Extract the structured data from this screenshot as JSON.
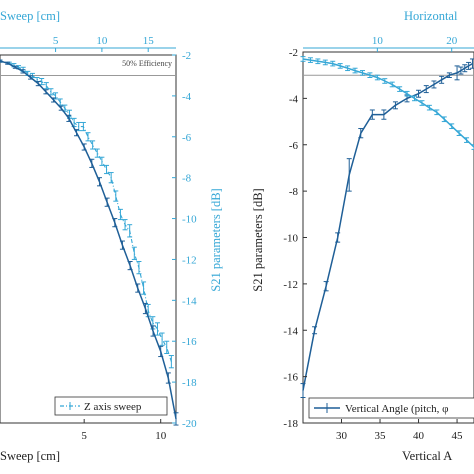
{
  "colors": {
    "dark_blue": "#1f5f97",
    "light_blue": "#35a7d6",
    "axis": "#333333",
    "ref_line": "#999999"
  },
  "chart_data": [
    {
      "type": "line",
      "panel": "left",
      "xlabel_top": "Sweep [cm]",
      "xlabel_bottom": "Sweep [cm]",
      "ylabel_right": "S21 parameters [dB]",
      "x_top_ticks": [
        "5",
        "10",
        "15"
      ],
      "x_top_range": [
        -1,
        18
      ],
      "x_bottom_ticks": [
        "5",
        "10"
      ],
      "x_bottom_range": [
        -0.5,
        11
      ],
      "y_ticks": [
        "-2",
        "-4",
        "-6",
        "-8",
        "-10",
        "-12",
        "-14",
        "-16",
        "-18",
        "-20"
      ],
      "ylim": [
        -20,
        -2
      ],
      "annotation": "50% Efficiency",
      "reference_y": -3,
      "legend": "Z axis sweep",
      "series": [
        {
          "name": "Z axis sweep",
          "axis": "top",
          "color": "light_blue",
          "style": "dash-dot",
          "x": [
            -1,
            0,
            0.5,
            1,
            1.5,
            2,
            2.5,
            3,
            3.5,
            4,
            4.5,
            5,
            5.5,
            6,
            6.5,
            7,
            7.5,
            8,
            8.5,
            9,
            9.5,
            10,
            10.5,
            11,
            11.5,
            12,
            12.5,
            13,
            13.5,
            14,
            14.5,
            15,
            15.5,
            16,
            16.5,
            17,
            17.5
          ],
          "y": [
            -2.3,
            -2.4,
            -2.5,
            -2.6,
            -2.7,
            -2.9,
            -3.0,
            -3.2,
            -3.3,
            -3.5,
            -3.8,
            -4.0,
            -4.3,
            -4.6,
            -4.9,
            -5.3,
            -5.5,
            -5.5,
            -6.0,
            -6.4,
            -6.8,
            -7.2,
            -7.6,
            -8.0,
            -8.9,
            -9.8,
            -10.3,
            -10.6,
            -11.7,
            -12.4,
            -13.4,
            -14.5,
            -15.1,
            -15.4,
            -15.9,
            -16.3,
            -17.0
          ],
          "err": [
            0.05,
            0.05,
            0.08,
            0.08,
            0.1,
            0.1,
            0.1,
            0.1,
            0.15,
            0.15,
            0.15,
            0.15,
            0.15,
            0.15,
            0.2,
            0.2,
            0.2,
            0.2,
            0.2,
            0.2,
            0.2,
            0.2,
            0.2,
            0.25,
            0.25,
            0.25,
            0.25,
            0.3,
            0.3,
            0.3,
            0.3,
            0.3,
            0.3,
            0.3,
            0.3,
            0.3,
            0.3
          ]
        },
        {
          "name": "",
          "axis": "bottom",
          "color": "dark_blue",
          "style": "solid",
          "x": [
            -0.5,
            0,
            0.5,
            1,
            1.5,
            2,
            2.5,
            3,
            3.5,
            4,
            4.5,
            5,
            5.5,
            6,
            6.5,
            7,
            7.5,
            8,
            8.5,
            9,
            9.5,
            10,
            10.5,
            11
          ],
          "y": [
            -2.3,
            -2.4,
            -2.6,
            -2.8,
            -3.1,
            -3.4,
            -3.8,
            -4.2,
            -4.6,
            -5.1,
            -5.8,
            -6.5,
            -7.3,
            -8.2,
            -9.2,
            -10.2,
            -11.3,
            -12.3,
            -13.4,
            -14.4,
            -15.5,
            -16.5,
            -17.8,
            -19.8
          ],
          "err": [
            0.05,
            0.05,
            0.05,
            0.08,
            0.08,
            0.1,
            0.1,
            0.1,
            0.1,
            0.15,
            0.15,
            0.15,
            0.2,
            0.2,
            0.2,
            0.2,
            0.2,
            0.2,
            0.2,
            0.25,
            0.25,
            0.25,
            0.25,
            0.3
          ]
        }
      ]
    },
    {
      "type": "line",
      "panel": "right",
      "xlabel_top": "Horizontal",
      "xlabel_bottom": "Vertical A",
      "ylabel_left": "S21 parameters [dB]",
      "x_top_ticks": [
        "10",
        "20"
      ],
      "x_top_range": [
        0,
        23
      ],
      "x_bottom_ticks": [
        "30",
        "35",
        "40",
        "45"
      ],
      "x_bottom_range": [
        25,
        47.2
      ],
      "y_ticks": [
        "-2",
        "-4",
        "-6",
        "-8",
        "-10",
        "-12",
        "-14",
        "-16",
        "-18"
      ],
      "ylim": [
        -18,
        -2
      ],
      "reference_y": -3,
      "legend": "Vertical Angle (pitch, φ",
      "series": [
        {
          "name": "Vertical Angle (pitch, φ",
          "axis": "bottom",
          "color": "dark_blue",
          "style": "solid",
          "x": [
            25,
            26.5,
            28,
            29.5,
            31,
            32.5,
            34,
            35.5,
            37,
            38.5,
            40,
            41,
            42,
            43,
            44,
            45,
            45.5,
            46,
            46.5,
            47
          ],
          "y": [
            -16.6,
            -14.0,
            -12.1,
            -10.0,
            -7.3,
            -5.5,
            -4.7,
            -4.7,
            -4.3,
            -4.0,
            -3.8,
            -3.6,
            -3.4,
            -3.2,
            -3.0,
            -2.9,
            -2.8,
            -2.7,
            -2.6,
            -2.5
          ],
          "err": [
            0.3,
            0.15,
            0.2,
            0.2,
            0.7,
            0.2,
            0.2,
            0.2,
            0.15,
            0.15,
            0.15,
            0.15,
            0.15,
            0.15,
            0.1,
            0.3,
            0.15,
            0.15,
            0.15,
            0.2
          ]
        },
        {
          "name": "",
          "axis": "top",
          "color": "light_blue",
          "style": "solid",
          "x": [
            0,
            1,
            2,
            3,
            4,
            5,
            6,
            7,
            8,
            9,
            10,
            11,
            12,
            13,
            14,
            15,
            16,
            17,
            18,
            19,
            20,
            21,
            22,
            23
          ],
          "y": [
            -2.3,
            -2.35,
            -2.4,
            -2.45,
            -2.5,
            -2.6,
            -2.7,
            -2.8,
            -2.9,
            -3.0,
            -3.1,
            -3.25,
            -3.4,
            -3.6,
            -3.8,
            -4.0,
            -4.2,
            -4.4,
            -4.6,
            -4.9,
            -5.2,
            -5.5,
            -5.8,
            -6.1
          ],
          "err": [
            0.1,
            0.1,
            0.1,
            0.1,
            0.1,
            0.1,
            0.1,
            0.1,
            0.1,
            0.1,
            0.1,
            0.1,
            0.1,
            0.1,
            0.1,
            0.1,
            0.1,
            0.1,
            0.1,
            0.1,
            0.1,
            0.1,
            0.1,
            0.1
          ]
        }
      ]
    }
  ]
}
